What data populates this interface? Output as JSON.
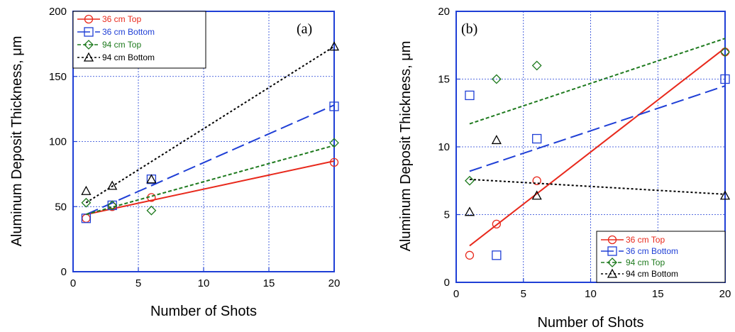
{
  "chart_data": [
    {
      "type": "scatter",
      "panel_label": "(a)",
      "xlabel": "Number of Shots",
      "ylabel": "Aluminum Deposit Thickness, μm",
      "xlim": [
        0,
        20
      ],
      "ylim": [
        0,
        200
      ],
      "xticks": [
        "0",
        "5",
        "10",
        "15",
        "20"
      ],
      "yticks": [
        "0",
        "50",
        "100",
        "150",
        "200"
      ],
      "grid": true,
      "legend_position": "top-left",
      "series": [
        {
          "name": "36 cm Top",
          "color": "#e8291c",
          "marker": "circle",
          "points": [
            [
              1,
              41
            ],
            [
              3,
              50
            ],
            [
              6,
              57
            ],
            [
              20,
              84
            ]
          ],
          "fit": [
            [
              1,
              44
            ],
            [
              20,
              85
            ]
          ]
        },
        {
          "name": "36 cm Bottom",
          "color": "#1f3fd6",
          "marker": "square",
          "points": [
            [
              1,
              41
            ],
            [
              3,
              51
            ],
            [
              6,
              71
            ],
            [
              20,
              127
            ]
          ],
          "fit": [
            [
              1,
              44
            ],
            [
              20,
              128
            ]
          ]
        },
        {
          "name": "94 cm Top",
          "color": "#1e7a1e",
          "marker": "diamond",
          "points": [
            [
              1,
              53
            ],
            [
              3,
              51
            ],
            [
              6,
              47
            ],
            [
              20,
              99
            ]
          ],
          "fit": [
            [
              1,
              44
            ],
            [
              20,
              97
            ]
          ]
        },
        {
          "name": "94 cm Bottom",
          "color": "#000000",
          "marker": "triangle",
          "points": [
            [
              1,
              62
            ],
            [
              3,
              66
            ],
            [
              6,
              71
            ],
            [
              20,
              173
            ]
          ],
          "fit": [
            [
              1,
              53
            ],
            [
              20,
              173
            ]
          ]
        }
      ]
    },
    {
      "type": "scatter",
      "panel_label": "(b)",
      "xlabel": "Number of Shots",
      "ylabel": "Aluminum Deposit Thickness, μm",
      "xlim": [
        0,
        20
      ],
      "ylim": [
        0,
        20
      ],
      "xticks": [
        "0",
        "5",
        "10",
        "15",
        "20"
      ],
      "yticks": [
        "0",
        "5",
        "10",
        "15",
        "20"
      ],
      "grid": true,
      "legend_position": "bottom-right",
      "series": [
        {
          "name": "36 cm Top",
          "color": "#e8291c",
          "marker": "circle",
          "points": [
            [
              1,
              2.0
            ],
            [
              3,
              4.3
            ],
            [
              6,
              7.5
            ],
            [
              20,
              17.0
            ]
          ],
          "fit": [
            [
              1,
              2.7
            ],
            [
              20,
              17.3
            ]
          ]
        },
        {
          "name": "36 cm Bottom",
          "color": "#1f3fd6",
          "marker": "square",
          "points": [
            [
              1,
              13.8
            ],
            [
              3,
              2.0
            ],
            [
              6,
              10.6
            ],
            [
              20,
              15.0
            ]
          ],
          "fit": [
            [
              1,
              8.2
            ],
            [
              20,
              14.5
            ]
          ]
        },
        {
          "name": "94 cm Top",
          "color": "#1e7a1e",
          "marker": "diamond",
          "points": [
            [
              1,
              7.5
            ],
            [
              3,
              15.0
            ],
            [
              6,
              16.0
            ],
            [
              20,
              17.0
            ]
          ],
          "fit": [
            [
              1,
              11.7
            ],
            [
              20,
              18.0
            ]
          ]
        },
        {
          "name": "94 cm Bottom",
          "color": "#000000",
          "marker": "triangle",
          "points": [
            [
              1,
              5.2
            ],
            [
              3,
              10.5
            ],
            [
              6,
              6.4
            ],
            [
              20,
              6.4
            ]
          ],
          "fit": [
            [
              1,
              7.6
            ],
            [
              20,
              6.5
            ]
          ]
        }
      ]
    }
  ]
}
